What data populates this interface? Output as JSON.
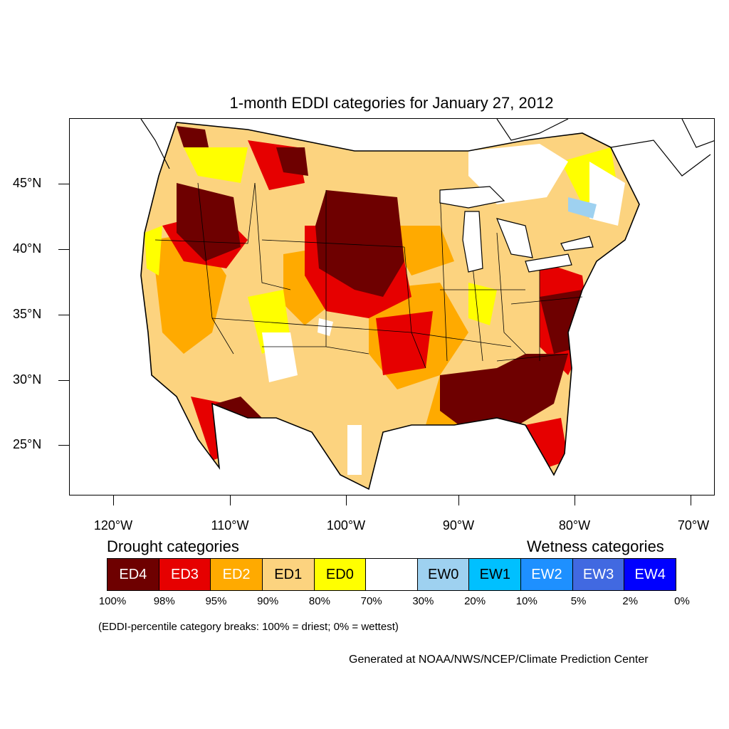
{
  "title": "1-month EDDI categories for January 27, 2012",
  "lat_labels": [
    "45°N",
    "40°N",
    "35°N",
    "30°N",
    "25°N"
  ],
  "lon_labels": [
    "120°W",
    "110°W",
    "100°W",
    "90°W",
    "80°W",
    "70°W"
  ],
  "drought_title": "Drought categories",
  "wetness_title": "Wetness categories",
  "legend": [
    {
      "label": "ED4",
      "color": "#6e0000",
      "text_color": "#ffffff"
    },
    {
      "label": "ED3",
      "color": "#e60000",
      "text_color": "#ffffff"
    },
    {
      "label": "ED2",
      "color": "#ffaa00",
      "text_color": "#ffffff"
    },
    {
      "label": "ED1",
      "color": "#fcd37f",
      "text_color": "#000000"
    },
    {
      "label": "ED0",
      "color": "#ffff00",
      "text_color": "#000000"
    },
    {
      "label": "",
      "color": "#ffffff",
      "text_color": "#000000"
    },
    {
      "label": "EW0",
      "color": "#9ed1f0",
      "text_color": "#000000"
    },
    {
      "label": "EW1",
      "color": "#00c0ff",
      "text_color": "#000000"
    },
    {
      "label": "EW2",
      "color": "#1e90ff",
      "text_color": "#ffffff"
    },
    {
      "label": "EW3",
      "color": "#4169e1",
      "text_color": "#ffffff"
    },
    {
      "label": "EW4",
      "color": "#0000ff",
      "text_color": "#ffffff"
    }
  ],
  "percent_breaks": [
    "100%",
    "98%",
    "95%",
    "90%",
    "80%",
    "70%",
    "30%",
    "20%",
    "10%",
    "5%",
    "2%",
    "0%"
  ],
  "note": "(EDDI-percentile category breaks: 100% = driest; 0% = wettest)",
  "credit": "Generated at NOAA/NWS/NCEP/Climate Prediction Center"
}
